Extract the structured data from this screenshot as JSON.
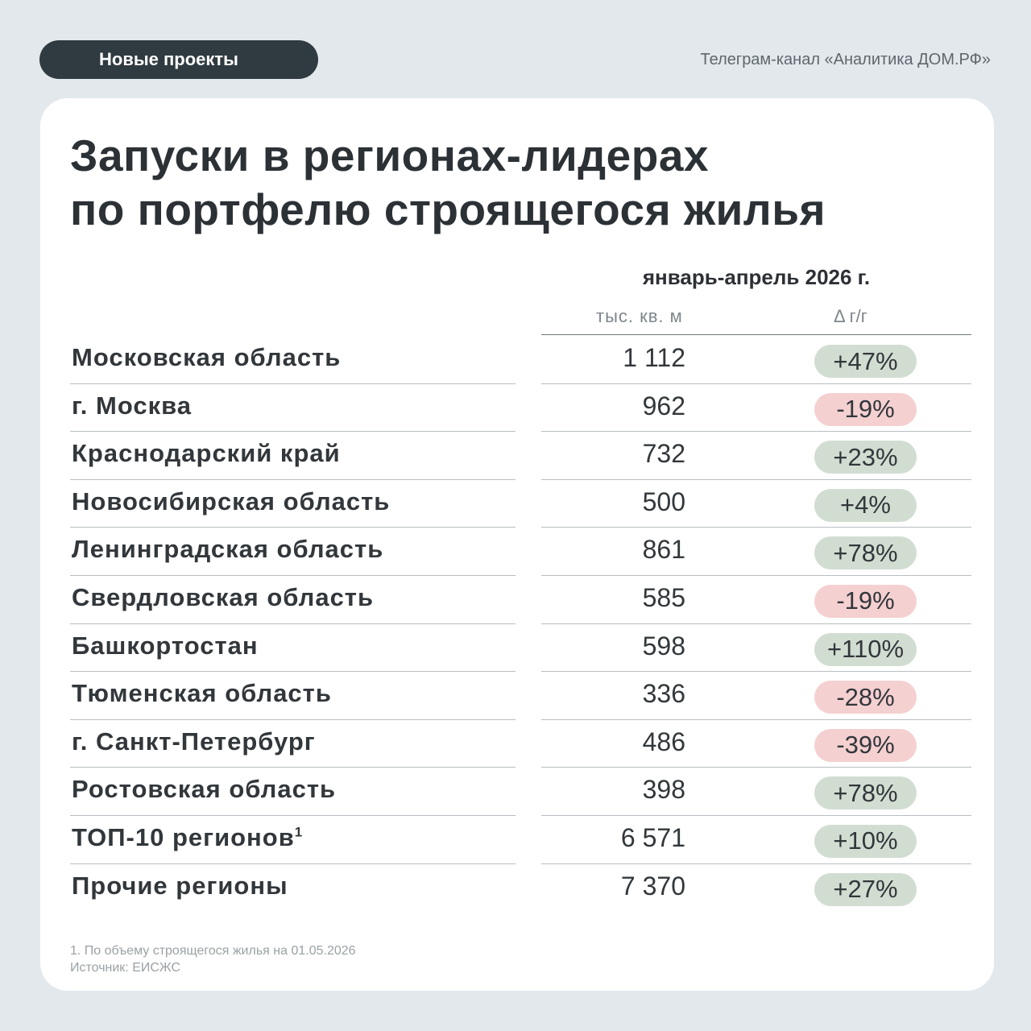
{
  "header": {
    "tag": "Новые проекты",
    "channel": "Телеграм-канал «Аналитика ДОМ.РФ»"
  },
  "title": {
    "line1": "Запуски в регионах-лидерах",
    "line2": "по портфелю строящегося жилья"
  },
  "table": {
    "period": "январь-апрель 2026 г.",
    "col_volume": "тыс. кв. м",
    "col_yoy": "Δ г/г",
    "rows": [
      {
        "region": "Московская область",
        "sup": "",
        "value": "1 112",
        "yoy": "+47%",
        "trend": "pos"
      },
      {
        "region": "г. Москва",
        "sup": "",
        "value": "962",
        "yoy": "-19%",
        "trend": "neg"
      },
      {
        "region": "Краснодарский край",
        "sup": "",
        "value": "732",
        "yoy": "+23%",
        "trend": "pos"
      },
      {
        "region": "Новосибирская область",
        "sup": "",
        "value": "500",
        "yoy": "+4%",
        "trend": "pos"
      },
      {
        "region": "Ленинградская область",
        "sup": "",
        "value": "861",
        "yoy": "+78%",
        "trend": "pos"
      },
      {
        "region": "Свердловская область",
        "sup": "",
        "value": "585",
        "yoy": "-19%",
        "trend": "neg"
      },
      {
        "region": "Башкортостан",
        "sup": "",
        "value": "598",
        "yoy": "+110%",
        "trend": "pos"
      },
      {
        "region": "Тюменская область",
        "sup": "",
        "value": "336",
        "yoy": "-28%",
        "trend": "neg"
      },
      {
        "region": "г. Санкт-Петербург",
        "sup": "",
        "value": "486",
        "yoy": "-39%",
        "trend": "neg"
      },
      {
        "region": "Ростовская область",
        "sup": "",
        "value": "398",
        "yoy": "+78%",
        "trend": "pos"
      },
      {
        "region": "ТОП-10 регионов",
        "sup": "1",
        "value": "6 571",
        "yoy": "+10%",
        "trend": "pos"
      },
      {
        "region": "Прочие регионы",
        "sup": "",
        "value": "7 370",
        "yoy": "+27%",
        "trend": "pos"
      }
    ]
  },
  "footnote": {
    "note": "1. По объему строящегося жилья на 01.05.2026",
    "source": "Источник: ЕИСЖС"
  },
  "colors": {
    "background": "#e3e8ec",
    "tag": "#2f3b40",
    "positive": "#d2ddd2",
    "negative": "#f5d0d1"
  }
}
